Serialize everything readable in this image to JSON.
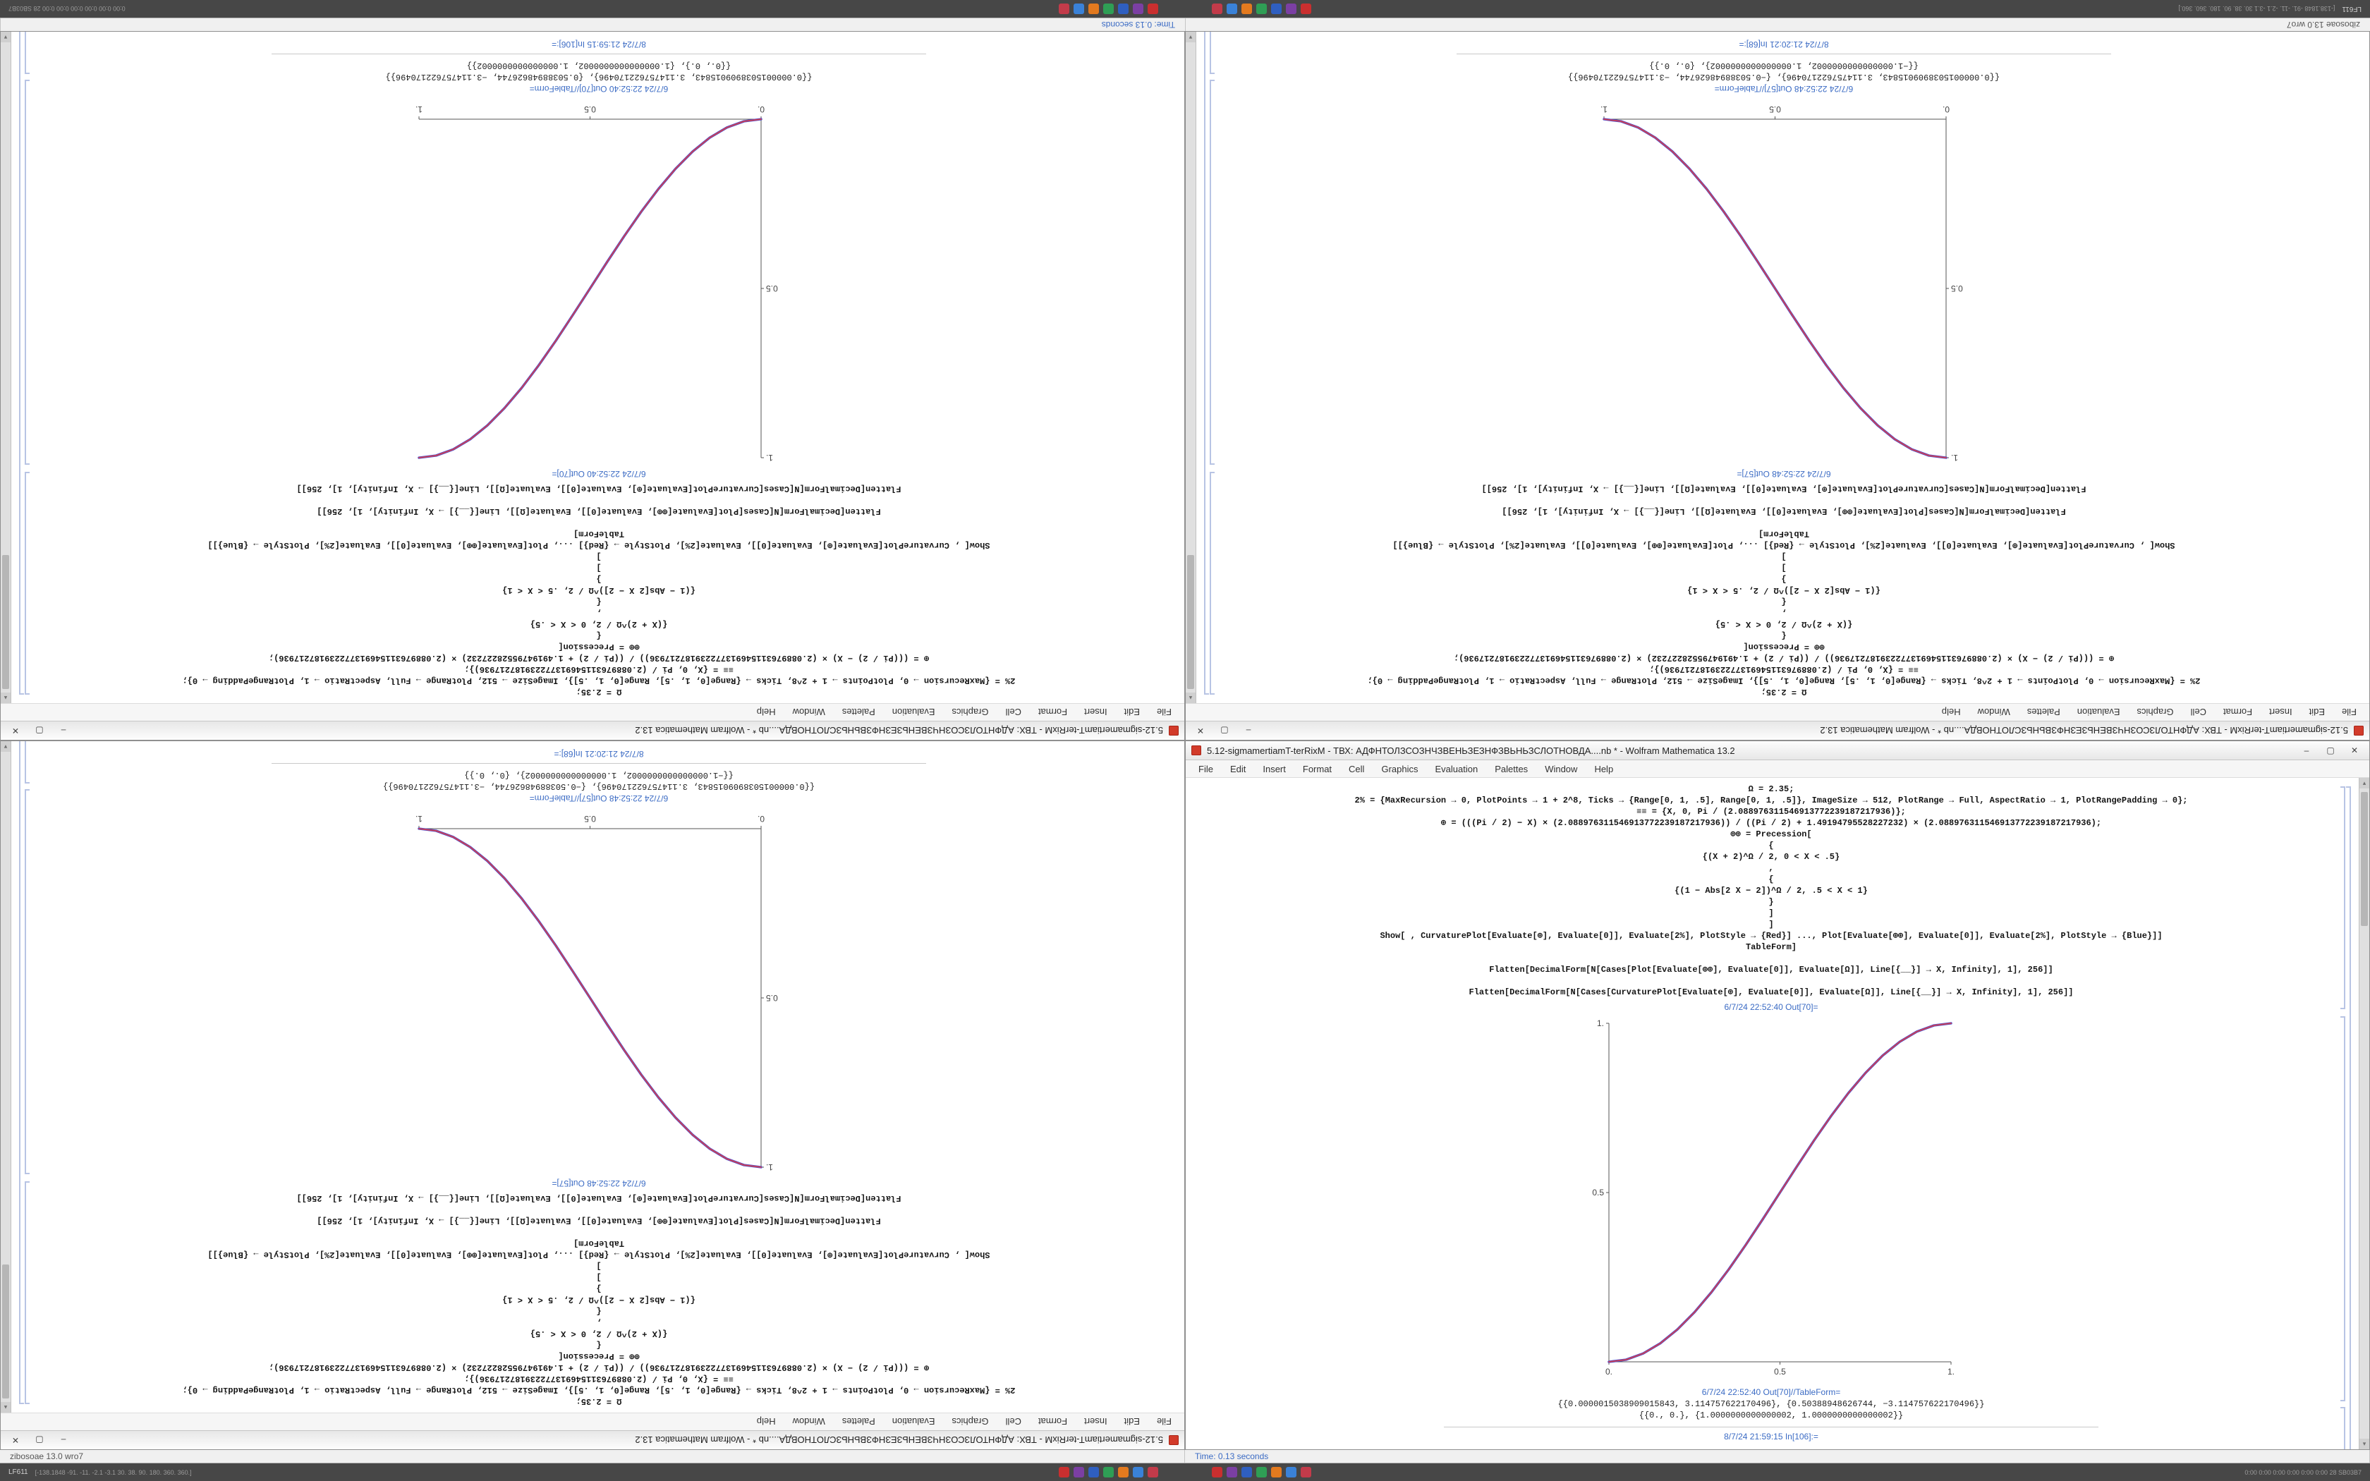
{
  "app": {
    "menu": [
      "File",
      "Edit",
      "Insert",
      "Format",
      "Cell",
      "Graphics",
      "Evaluation",
      "Palettes",
      "Window",
      "Help"
    ],
    "controls": {
      "minimize": "–",
      "maximize": "▢",
      "close": "✕"
    },
    "scrollbar": {
      "up": "▴",
      "down": "▾"
    }
  },
  "desktop": {
    "status_left": "zibosoae 13.0 wro7",
    "status_right": "Time: 0.13 seconds",
    "taskbar": {
      "corner_left": "LF611",
      "corner_left_numbers": "[-138.1848  -91.  -11.  -2.1  -3.1  30.  38.  90.  180.  360.  360.]",
      "corner_right": "0:00  0:00  0:00  0:00  0:00  0:00   28   SB03B7",
      "icons": [
        {
          "name": "taskbar-icon-red",
          "color": "#c92f2f",
          "label": ""
        },
        {
          "name": "taskbar-icon-violet",
          "color": "#7b3fa3",
          "label": ""
        },
        {
          "name": "taskbar-icon-blue",
          "color": "#2f5fc0",
          "label": ""
        },
        {
          "name": "taskbar-icon-green",
          "color": "#2f9e55",
          "label": ""
        },
        {
          "name": "taskbar-icon-orange",
          "color": "#e37a1f",
          "label": ""
        },
        {
          "name": "taskbar-icon-skyblue",
          "color": "#3a82d8",
          "label": ""
        },
        {
          "name": "taskbar-icon-crimson",
          "color": "#c23b4a",
          "label": ""
        }
      ]
    }
  },
  "notebooks": {
    "A": {
      "plot_id": "A",
      "code_lines": [
        "Ω = 2.35;",
        "2% = {MaxRecursion → 0, PlotPoints → 1 + 2^8, Ticks → {Range[0, 1, .5], Range[0, 1, .5]}, ImageSize → 512, PlotRange → Full, AspectRatio → 1, PlotRangePadding → 0};",
        "≡≡ = {X, 0, Pi / (2.088976311546913772239187217936)};",
        "⊕ = (((Pi / 2) − X) × (2.088976311546913772239187217936)) / ((Pi / 2) + 1.49194795528227232) × (2.088976311546913772239187217936);",
        "⊕⊕ = Precession[",
        "{",
        "{(X + 2)^Ω / 2, 0 < X < .5}",
        ",",
        "{",
        "{(1 − Abs[2 X − 2])^Ω / 2, .5 < X < 1}",
        "}",
        "]",
        "]",
        "Show[ , CurvaturePlot[Evaluate[⊕], Evaluate[0]], Evaluate[2%], PlotStyle → {Red}] ..., Plot[Evaluate[⊕⊕], Evaluate[0]], Evaluate[2%], PlotStyle → {Blue}]]",
        "TableForm]",
        "",
        "Flatten[DecimalForm[N[Cases[Plot[Evaluate[⊕⊕], Evaluate[0]], Evaluate[Ω]], Line[{__}] → X, Infinity], 1], 256]]",
        "",
        "Flatten[DecimalForm[N[Cases[CurvaturePlot[Evaluate[⊕], Evaluate[0]], Evaluate[Ω]], Line[{__}] → X, Infinity], 1], 256]]"
      ],
      "out_label": "6/7/24 22:52:40 Out[70]=",
      "tableform_label": "6/7/24 22:52:40 Out[70]//TableForm=",
      "table_lines": [
        "{{0.0000015038909015843, 3.114757622170496}, {0.50388948626744, −3.114757622170496}}",
        "{{0., 0.}, {1.0000000000000002, 1.0000000000000002}}"
      ],
      "in_label": "8/7/24 21:59:15 In[106]:="
    },
    "B": {
      "plot_id": "B",
      "code_lines": [
        "Ω = 2.35;",
        "2% = {MaxRecursion → 0, PlotPoints → 1 + 2^8, Ticks → {Range[0, 1, .5], Range[0, 1, .5]}, ImageSize → 512, PlotRange → Full, AspectRatio → 1, PlotRangePadding → 0};",
        "≡≡ = {X, 0, Pi / (2.088976311546913772239187217936)};",
        "⊕ = (((Pi / 2) − X) × (2.088976311546913772239187217936)) / ((Pi / 2) + 1.49194795528227232) × (2.088976311546913772239187217936);",
        "⊕⊕ = Precession[",
        "{",
        "{(X + 2)^Ω / 2, 0 < X < .5}",
        ",",
        "{",
        "{(1 − Abs[2 X − 2])^Ω / 2, .5 < X < 1}",
        "}",
        "]",
        "]",
        "Show[ , CurvaturePlot[Evaluate[⊕], Evaluate[0]], Evaluate[2%], PlotStyle → {Red}] ..., Plot[Evaluate[⊕⊕], Evaluate[0]], Evaluate[2%], PlotStyle → {Blue}]]",
        "TableForm]",
        "",
        "Flatten[DecimalForm[N[Cases[Plot[Evaluate[⊕⊕], Evaluate[0]], Evaluate[Ω]], Line[{__}] → X, Infinity], 1], 256]]",
        "",
        "Flatten[DecimalForm[N[Cases[CurvaturePlot[Evaluate[⊕], Evaluate[0]], Evaluate[Ω]], Line[{__}] → X, Infinity], 1], 256]]"
      ],
      "out_label": "6/7/24 22:52:48 Out[57]=",
      "tableform_label": "6/7/24 22:52:48 Out[57]//TableForm=",
      "table_lines": [
        "{{0.0000015038909015843, 3.114757622170496}, {−0.50388948626744, −3.114757622170496}}",
        "{{−1.0000000000000002, 1.0000000000000002}, {0., 0.}}"
      ],
      "in_label": "8/7/24 21:20:21 In[68]:="
    }
  },
  "windows": [
    {
      "slot": "tl",
      "rotated": true,
      "nb": "A",
      "title": "5.12-sigmamertiamT-terRixM - ТВХ: АДФНТОЛЗСОЗНЧЗВЕНЬЗЕЗНФЗВЬНЬЗСЛОТНОВДА....nb * - Wolfram Mathematica 13.2"
    },
    {
      "slot": "tr",
      "rotated": true,
      "nb": "B",
      "title": "5.12-sigmamertiamT-terRixM - ТВХ: АДФНТОЛЗСОЗНЧЗВЕНЬЗЕЗНФЗВЬНЬЗСЛОТНОВДА....nb * - Wolfram Mathematica 13.2"
    },
    {
      "slot": "bl",
      "rotated": true,
      "nb": "B",
      "title": "5.12-sigmamertiamT-terRixM - ТВХ: АДФНТОЛЗСОЗНЧЗВЕНЬЗЕЗНФЗВЬНЬЗСЛОТНОВДА....nb * - Wolfram Mathematica 13.2"
    },
    {
      "slot": "br",
      "rotated": false,
      "nb": "A",
      "title": "5.12-sigmamertiamT-terRixM - ТВХ: АДФНТОЛЗСОЗНЧЗВЕНЬЗЕЗНФЗВЬНЬЗСЛОТНОВДА....nb * - Wolfram Mathematica 13.2"
    }
  ],
  "chart_data": [
    {
      "id": "A",
      "type": "line",
      "title": "",
      "xlabel": "",
      "ylabel": "",
      "xlim": [
        0,
        1
      ],
      "ylim": [
        0,
        1
      ],
      "grid": false,
      "legend": "none",
      "x_ticks": [
        "0.",
        "0.5",
        "1."
      ],
      "x_tick_values": [
        0,
        0.5,
        1
      ],
      "y_ticks": [
        "0.5",
        "1."
      ],
      "y_tick_values": [
        0.5,
        1
      ],
      "x": [
        0,
        0.05,
        0.1,
        0.15,
        0.2,
        0.25,
        0.3,
        0.35,
        0.4,
        0.45,
        0.5,
        0.55,
        0.6,
        0.65,
        0.7,
        0.75,
        0.8,
        0.85,
        0.9,
        0.95,
        1
      ],
      "series": [
        {
          "name": "Plot[⊕⊕] (Blue)",
          "values": [
            0,
            0.0062,
            0.0245,
            0.0545,
            0.0955,
            0.1464,
            0.2061,
            0.273,
            0.3455,
            0.4218,
            0.5,
            0.5782,
            0.6545,
            0.727,
            0.7939,
            0.8536,
            0.9045,
            0.9455,
            0.9755,
            0.9938,
            1
          ]
        },
        {
          "name": "CurvaturePlot[⊕] (Red)",
          "values": [
            0,
            0.0062,
            0.0245,
            0.0545,
            0.0955,
            0.1464,
            0.2061,
            0.273,
            0.3455,
            0.4218,
            0.5,
            0.5782,
            0.6545,
            0.727,
            0.7939,
            0.8536,
            0.9045,
            0.9455,
            0.9755,
            0.9938,
            1
          ]
        }
      ],
      "colors": [
        "#4b4bcf",
        "#cf4050"
      ]
    },
    {
      "id": "B",
      "type": "line",
      "title": "",
      "xlabel": "",
      "ylabel": "",
      "xlim": [
        0,
        1
      ],
      "ylim": [
        0,
        1
      ],
      "grid": false,
      "legend": "none",
      "x_ticks": [
        "0.",
        "0.5",
        "1."
      ],
      "x_tick_values": [
        0,
        0.5,
        1
      ],
      "y_ticks": [
        "0.5",
        "1."
      ],
      "y_tick_values": [
        0.5,
        1
      ],
      "x": [
        0,
        0.05,
        0.1,
        0.15,
        0.2,
        0.25,
        0.3,
        0.35,
        0.4,
        0.45,
        0.5,
        0.55,
        0.6,
        0.65,
        0.7,
        0.75,
        0.8,
        0.85,
        0.9,
        0.95,
        1
      ],
      "series": [
        {
          "name": "Plot[⊕⊕] (Blue)",
          "values": [
            1,
            0.9938,
            0.9755,
            0.9455,
            0.9045,
            0.8536,
            0.7939,
            0.727,
            0.6545,
            0.5782,
            0.5,
            0.4218,
            0.3455,
            0.273,
            0.2061,
            0.1464,
            0.0955,
            0.0545,
            0.0245,
            0.0062,
            0
          ]
        },
        {
          "name": "CurvaturePlot[⊕] (Red)",
          "values": [
            1,
            0.9938,
            0.9755,
            0.9455,
            0.9045,
            0.8536,
            0.7939,
            0.727,
            0.6545,
            0.5782,
            0.5,
            0.4218,
            0.3455,
            0.273,
            0.2061,
            0.1464,
            0.0955,
            0.0545,
            0.0245,
            0.0062,
            0
          ]
        }
      ],
      "colors": [
        "#4b4bcf",
        "#cf4050"
      ]
    }
  ]
}
